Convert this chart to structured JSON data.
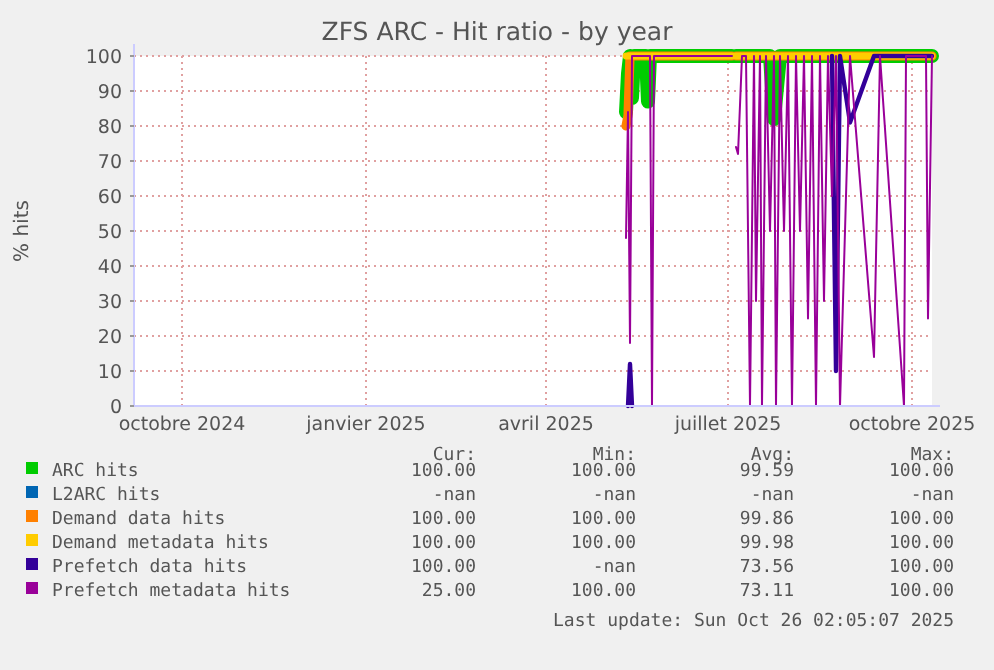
{
  "chart_data": {
    "type": "line",
    "title": "ZFS ARC - Hit ratio - by year",
    "ylabel": "% hits",
    "x": [
      "2025-05-26",
      "2025-05-27",
      "2025-05-28",
      "2025-05-29",
      "2025-05-30",
      "2025-06-01",
      "2025-06-05",
      "2025-06-06",
      "2025-06-07",
      "2025-06-08",
      "2025-06-09",
      "2025-06-22",
      "2025-07-18",
      "2025-07-19",
      "2025-07-20",
      "2025-07-21",
      "2025-07-23",
      "2025-07-25",
      "2025-07-27",
      "2025-07-29",
      "2025-07-30",
      "2025-08-01",
      "2025-08-02",
      "2025-08-04",
      "2025-08-06",
      "2025-08-08",
      "2025-08-09",
      "2025-08-11",
      "2025-08-13",
      "2025-08-15",
      "2025-08-17",
      "2025-08-19",
      "2025-08-21",
      "2025-08-23",
      "2025-08-25",
      "2025-08-27",
      "2025-08-29",
      "2025-08-31",
      "2025-09-02",
      "2025-09-04",
      "2025-09-06",
      "2025-09-08",
      "2025-09-10",
      "2025-09-15",
      "2025-09-27",
      "2025-09-30",
      "2025-10-12",
      "2025-10-13",
      "2025-10-20",
      "2025-10-23",
      "2025-10-24",
      "2025-10-26"
    ],
    "series": [
      {
        "name": "ARC hits",
        "color": "#00cc00",
        "values": [
          84,
          95,
          100,
          88,
          100,
          100,
          100,
          87,
          100,
          100,
          100,
          100,
          100,
          null,
          100,
          100,
          100,
          100,
          100,
          100,
          100,
          100,
          100,
          100,
          100,
          82,
          88,
          100,
          100,
          100,
          100,
          100,
          100,
          100,
          100,
          100,
          100,
          100,
          100,
          100,
          100,
          100,
          100,
          100,
          100,
          100,
          100,
          100,
          100,
          100,
          100,
          100
        ]
      },
      {
        "name": "L2ARC hits",
        "color": "#0066b3",
        "values": [
          null,
          null,
          null,
          null,
          null,
          null,
          null,
          null,
          null,
          null,
          null,
          null,
          null,
          null,
          null,
          null,
          null,
          null,
          null,
          null,
          null,
          null,
          null,
          null,
          null,
          null,
          null,
          null,
          null,
          null,
          null,
          null,
          null,
          null,
          null,
          null,
          null,
          null,
          null,
          null,
          null,
          null,
          null,
          null,
          null,
          null,
          null,
          null,
          null,
          null,
          null,
          null
        ]
      },
      {
        "name": "Demand data hits",
        "color": "#ff8000",
        "values": [
          80,
          83,
          100,
          100,
          100,
          100,
          100,
          100,
          100,
          100,
          100,
          100,
          100,
          null,
          100,
          100,
          100,
          100,
          100,
          100,
          100,
          100,
          100,
          100,
          100,
          100,
          100,
          100,
          100,
          100,
          100,
          100,
          100,
          100,
          100,
          100,
          100,
          100,
          100,
          100,
          100,
          100,
          100,
          100,
          100,
          100,
          100,
          100,
          100,
          100,
          100,
          100
        ]
      },
      {
        "name": "Demand metadata hits",
        "color": "#ffcc00",
        "values": [
          100,
          100,
          100,
          100,
          100,
          100,
          100,
          100,
          100,
          100,
          100,
          100,
          100,
          null,
          100,
          100,
          100,
          100,
          100,
          100,
          100,
          100,
          100,
          100,
          100,
          100,
          100,
          100,
          100,
          100,
          100,
          100,
          100,
          100,
          100,
          100,
          100,
          100,
          100,
          100,
          100,
          100,
          100,
          100,
          100,
          100,
          100,
          100,
          100,
          100,
          100,
          100
        ]
      },
      {
        "name": "Prefetch data hits",
        "color": "#330099",
        "values": [
          null,
          0,
          12,
          0,
          null,
          null,
          null,
          null,
          null,
          null,
          null,
          null,
          null,
          null,
          null,
          null,
          null,
          null,
          null,
          null,
          null,
          null,
          null,
          null,
          null,
          null,
          null,
          null,
          null,
          null,
          null,
          null,
          null,
          null,
          null,
          null,
          null,
          null,
          null,
          null,
          100,
          10,
          100,
          81,
          100,
          100,
          100,
          100,
          100,
          100,
          100,
          100
        ]
      },
      {
        "name": "Prefetch metadata hits",
        "color": "#990099",
        "values": [
          48,
          84,
          18,
          100,
          100,
          100,
          100,
          100,
          100,
          0,
          100,
          100,
          100,
          null,
          74,
          72,
          100,
          100,
          0,
          100,
          30,
          100,
          0,
          100,
          50,
          100,
          0,
          100,
          50,
          100,
          0,
          100,
          50,
          100,
          25,
          100,
          0,
          100,
          30,
          100,
          60,
          100,
          0,
          100,
          14,
          100,
          0,
          100,
          100,
          100,
          25,
          100
        ]
      }
    ],
    "xlim": [
      "2024-09-22",
      "2025-10-26"
    ],
    "xticks": [
      {
        "value": "2024-10-16",
        "label": "octobre 2024"
      },
      {
        "value": "2025-01-16",
        "label": "janvier 2025"
      },
      {
        "value": "2025-04-16",
        "label": "avril 2025"
      },
      {
        "value": "2025-07-16",
        "label": "juillet 2025"
      },
      {
        "value": "2025-10-16",
        "label": "octobre 2025"
      }
    ],
    "ylim": [
      0,
      100
    ],
    "yticks": [
      0,
      10,
      20,
      30,
      40,
      50,
      60,
      70,
      80,
      90,
      100
    ],
    "grid": true,
    "legend": "bottom",
    "annotations": [
      "Cur:",
      "Min:",
      "Avg:",
      "Max:",
      "100.00",
      "100.00",
      "99.59",
      "100.00",
      "-nan",
      "-nan",
      "-nan",
      "-nan",
      "100.00",
      "100.00",
      "99.86",
      "100.00",
      "100.00",
      "100.00",
      "99.98",
      "100.00",
      "100.00",
      "-nan",
      "73.56",
      "100.00",
      "25.00",
      "100.00",
      "73.11",
      "100.00",
      "Last update: Sun Oct 26 02:05:07 2025"
    ]
  }
}
